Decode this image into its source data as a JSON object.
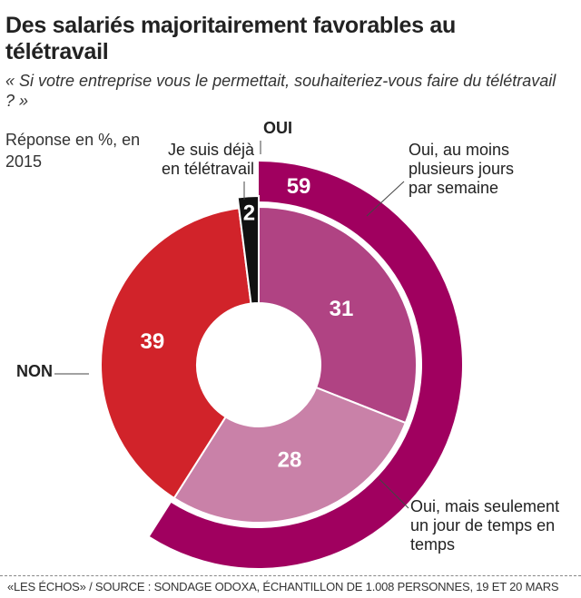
{
  "chart_data": {
    "type": "donut",
    "title": "Des salariés majoritairement favorables au télétravail",
    "subtitle": "« Si votre entreprise vous le permettait, souhaiteriez-vous faire du télétravail ? »",
    "unit_note": "Réponse en %, en 2015",
    "slices": [
      {
        "label": "Oui, au moins plusieurs jours par semaine",
        "value": 31,
        "color": "#b04383"
      },
      {
        "label": "Oui, mais seulement un jour de temps en temps",
        "value": 28,
        "color": "#c981a8"
      },
      {
        "label": "NON",
        "value": 39,
        "color": "#d1232a"
      },
      {
        "label": "Je suis déjà en télétravail",
        "value": 2,
        "color": "#111111"
      }
    ],
    "outer_ring": {
      "label": "OUI",
      "value": 59,
      "color": "#a0005f"
    },
    "source": "«LES ÉCHOS» / SOURCE : SONDAGE ODOXA, ÉCHANTILLON DE 1.008 PERSONNES, 19 ET 20 MARS"
  }
}
